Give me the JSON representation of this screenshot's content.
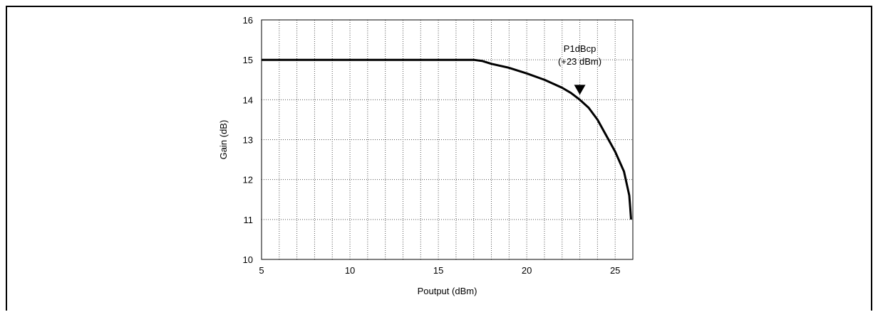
{
  "chart_data": {
    "type": "line",
    "title": "",
    "xlabel": "Poutput (dBm)",
    "ylabel": "Gain (dB)",
    "xlim": [
      5,
      26
    ],
    "ylim": [
      10,
      16
    ],
    "x_ticks": [
      5,
      10,
      15,
      20,
      25
    ],
    "y_ticks": [
      10,
      11,
      12,
      13,
      14,
      15,
      16
    ],
    "x_minor_step": 1,
    "grid": true,
    "grid_style": "dotted",
    "series": [
      {
        "name": "",
        "color": "#000000",
        "points": [
          [
            5,
            15.0
          ],
          [
            10,
            15.0
          ],
          [
            15,
            15.0
          ],
          [
            17,
            15.0
          ],
          [
            17.5,
            14.97
          ],
          [
            18,
            14.9
          ],
          [
            19,
            14.8
          ],
          [
            20,
            14.66
          ],
          [
            21,
            14.5
          ],
          [
            22,
            14.3
          ],
          [
            22.5,
            14.17
          ],
          [
            23,
            14.0
          ],
          [
            23.5,
            13.8
          ],
          [
            24,
            13.5
          ],
          [
            24.5,
            13.1
          ],
          [
            25,
            12.7
          ],
          [
            25.5,
            12.2
          ],
          [
            25.8,
            11.6
          ],
          [
            25.85,
            11.3
          ],
          [
            25.9,
            11.0
          ]
        ]
      }
    ],
    "annotation": {
      "line1": "P1dBcp",
      "line2": "(+23 dBm)",
      "x": 23,
      "y": 14.0,
      "marker": "down-triangle"
    }
  }
}
